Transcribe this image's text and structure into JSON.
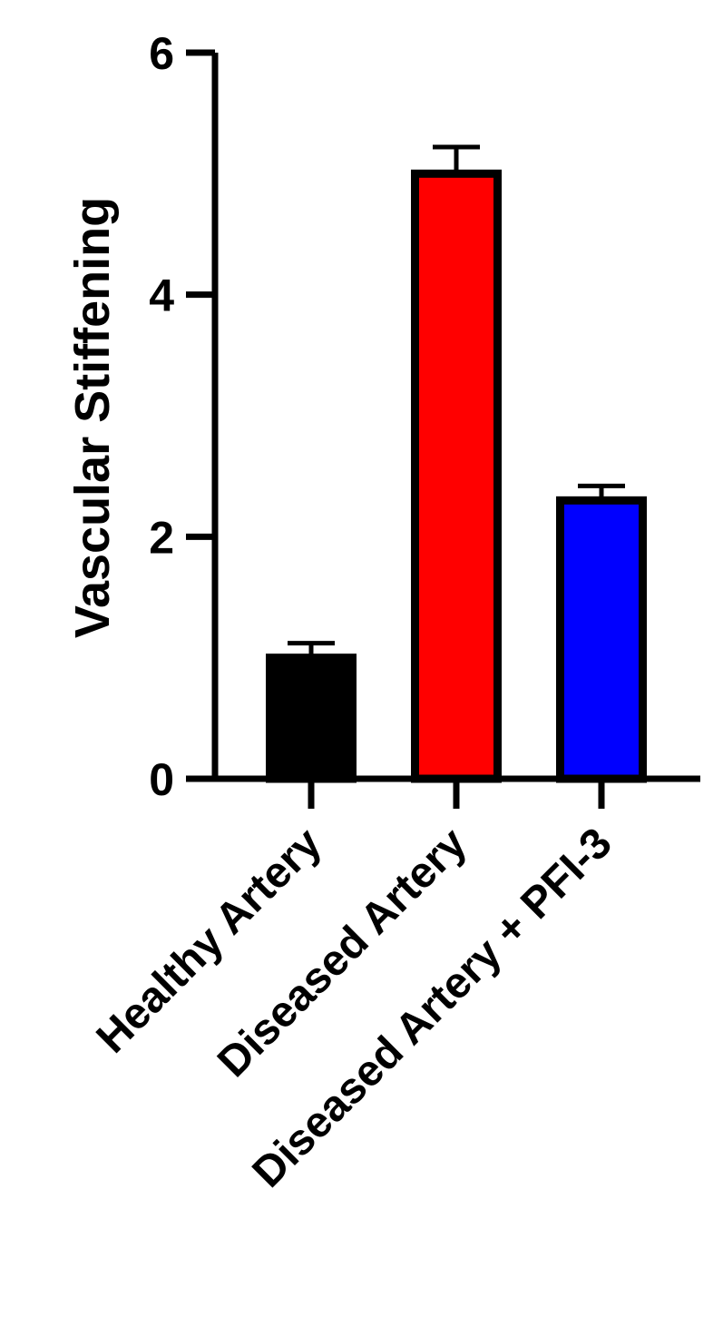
{
  "chart_data": {
    "type": "bar",
    "title": "",
    "xlabel": "",
    "ylabel": "Vascular Stiffening",
    "ylim": [
      0,
      6
    ],
    "yticks": [
      0,
      2,
      4,
      6
    ],
    "yticks_text": [
      "0",
      "2",
      "4",
      "6"
    ],
    "grid": false,
    "legend": "none",
    "categories": [
      "Healthy Artery",
      "Diseased Artery",
      "Diseased Artery + PFI-3"
    ],
    "values": [
      1.0,
      5.0,
      2.3
    ],
    "error_plus": [
      0.12,
      0.22,
      0.12
    ],
    "bar_colors": [
      "#000000",
      "#ff0000",
      "#0000ff"
    ],
    "bar_edge_color": "#000000"
  }
}
